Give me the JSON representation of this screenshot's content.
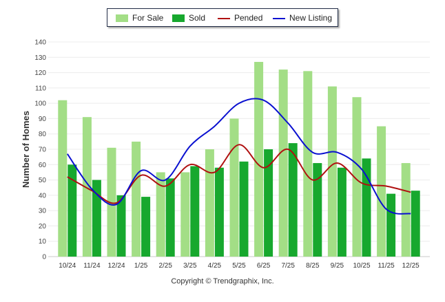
{
  "chart_data": {
    "type": "bar",
    "ylabel": "Number of Homes",
    "ylim": [
      0,
      140
    ],
    "yticks": [
      0,
      10,
      20,
      30,
      40,
      50,
      60,
      70,
      80,
      90,
      100,
      110,
      120,
      130,
      140
    ],
    "categories": [
      "10/24",
      "11/24",
      "12/24",
      "1/25",
      "2/25",
      "3/25",
      "4/25",
      "5/25",
      "6/25",
      "7/25",
      "8/25",
      "9/25",
      "10/25",
      "11/25",
      "12/25"
    ],
    "series": [
      {
        "name": "For Sale",
        "kind": "bar",
        "color": "#a3de86",
        "values": [
          102,
          91,
          71,
          75,
          55,
          55,
          70,
          90,
          127,
          122,
          121,
          111,
          104,
          85,
          61
        ]
      },
      {
        "name": "Sold",
        "kind": "bar",
        "color": "#17a82e",
        "values": [
          60,
          50,
          40,
          39,
          51,
          59,
          58,
          62,
          70,
          74,
          61,
          58,
          64,
          41,
          43
        ]
      },
      {
        "name": "Pended",
        "kind": "line",
        "color": "#b01010",
        "values": [
          52,
          43,
          35,
          53,
          46,
          60,
          55,
          73,
          58,
          70,
          50,
          61,
          48,
          46,
          42
        ]
      },
      {
        "name": "New Listing",
        "kind": "line",
        "color": "#0a10d0",
        "values": [
          67,
          44,
          34,
          56,
          50,
          72,
          85,
          100,
          102,
          87,
          68,
          68,
          57,
          31,
          28
        ]
      }
    ],
    "legend_position": "top-center",
    "grid": true
  },
  "legend": [
    {
      "label": "For Sale",
      "color": "#a3de86",
      "kind": "bar"
    },
    {
      "label": "Sold",
      "color": "#17a82e",
      "kind": "bar"
    },
    {
      "label": "Pended",
      "color": "#b01010",
      "kind": "line"
    },
    {
      "label": "New Listing",
      "color": "#0a10d0",
      "kind": "line"
    }
  ],
  "footer": {
    "copyright": "Copyright © Trendgraphix, Inc."
  }
}
